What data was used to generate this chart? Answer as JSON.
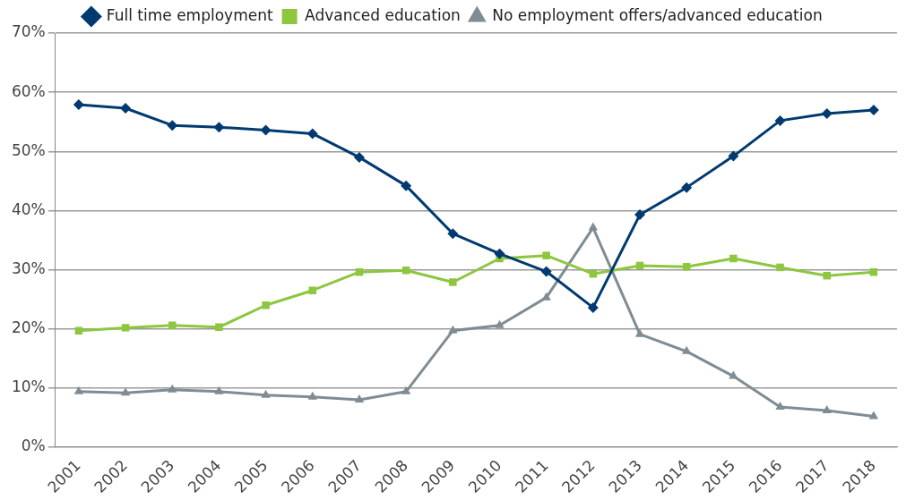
{
  "chart_data": {
    "type": "line",
    "categories": [
      "2001",
      "2002",
      "2003",
      "2004",
      "2005",
      "2006",
      "2007",
      "2008",
      "2009",
      "2010",
      "2011",
      "2012",
      "2013",
      "2014",
      "2015",
      "2016",
      "2017",
      "2018"
    ],
    "series": [
      {
        "name": "Full time employment",
        "color": "#003a70",
        "marker": "diamond",
        "values": [
          57.9,
          57.3,
          54.4,
          54.1,
          53.6,
          53.0,
          49.0,
          44.2,
          36.1,
          32.7,
          29.7,
          23.6,
          39.3,
          43.9,
          49.2,
          55.2,
          56.4,
          57.0
        ]
      },
      {
        "name": "Advanced education",
        "color": "#8dc63f",
        "marker": "square",
        "values": [
          19.7,
          20.2,
          20.6,
          20.3,
          24.0,
          26.5,
          29.6,
          29.9,
          27.9,
          31.9,
          32.4,
          29.3,
          30.7,
          30.5,
          31.9,
          30.4,
          29.0,
          29.6
        ]
      },
      {
        "name": "No employment offers/advanced education",
        "color": "#7f8c94",
        "marker": "triangle",
        "values": [
          9.4,
          9.2,
          9.7,
          9.4,
          8.8,
          8.5,
          8.0,
          9.4,
          19.7,
          20.6,
          25.3,
          37.1,
          19.1,
          16.2,
          12.0,
          6.8,
          6.2,
          5.2
        ]
      }
    ],
    "ylim": [
      0,
      70
    ],
    "yticks": [
      {
        "value": 0,
        "label": "0%"
      },
      {
        "value": 10,
        "label": "10%"
      },
      {
        "value": 20,
        "label": "20%"
      },
      {
        "value": 30,
        "label": "30%"
      },
      {
        "value": 40,
        "label": "40%"
      },
      {
        "value": 50,
        "label": "50%"
      },
      {
        "value": 60,
        "label": "60%"
      },
      {
        "value": 70,
        "label": "70%"
      }
    ],
    "grid": "y",
    "legend": "top",
    "line_style": "solid"
  }
}
